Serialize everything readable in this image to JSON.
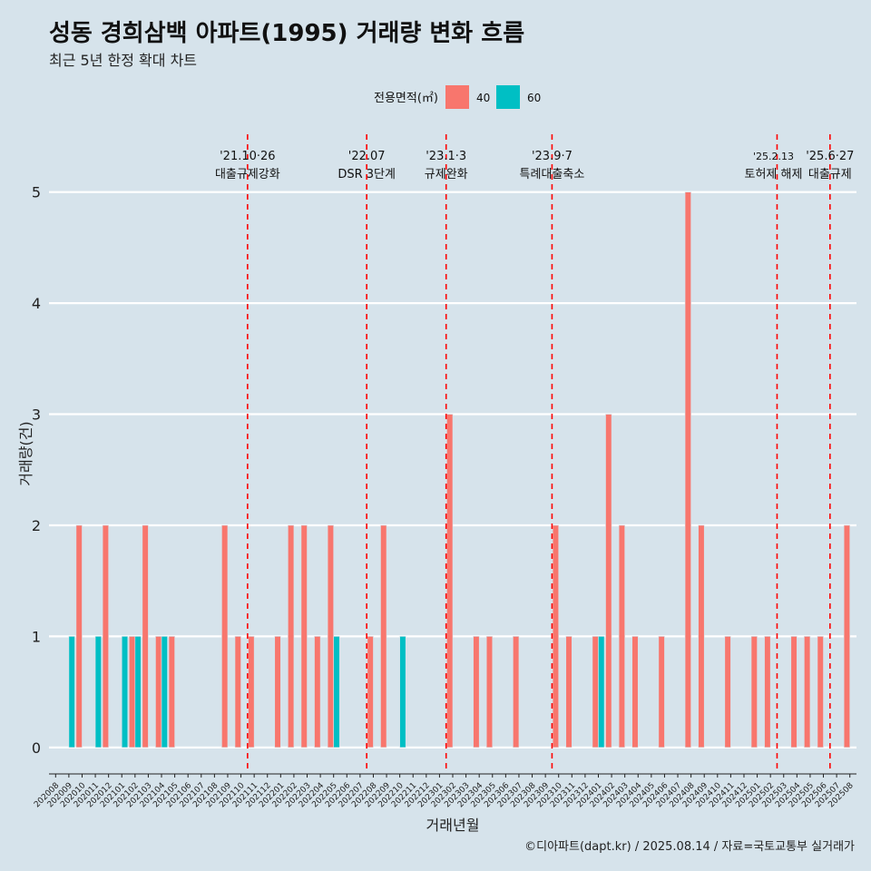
{
  "title": "성동 경희삼백 아파트(1995) 거래량 변화 흐름",
  "subtitle": "최근 5년 한정 확대 차트",
  "caption": "©디아파트(dapt.kr) / 2025.08.14 / 자료=국토교통부 실거래가",
  "colors": {
    "background": "#d6e3eb",
    "grid": "#ffffff",
    "s40": "#f8766d",
    "s60": "#00bfc4",
    "event_line": "#ff0000"
  },
  "chart_data": {
    "type": "bar",
    "position": "dodge",
    "xlabel": "거래년월",
    "ylabel": "거래량(건)",
    "ylim": [
      0,
      5
    ],
    "yticks": [
      0,
      1,
      2,
      3,
      4,
      5
    ],
    "legend": {
      "title": "전용면적(㎡)",
      "position": "top",
      "entries": [
        "40",
        "60"
      ]
    },
    "categories": [
      "202008",
      "202009",
      "202010",
      "202011",
      "202012",
      "202101",
      "202102",
      "202103",
      "202104",
      "202105",
      "202106",
      "202107",
      "202108",
      "202109",
      "202110",
      "202111",
      "202112",
      "202201",
      "202202",
      "202203",
      "202204",
      "202205",
      "202206",
      "202207",
      "202208",
      "202209",
      "202210",
      "202211",
      "202212",
      "202301",
      "202302",
      "202303",
      "202304",
      "202305",
      "202306",
      "202307",
      "202308",
      "202309",
      "202310",
      "202311",
      "202312",
      "202401",
      "202402",
      "202403",
      "202404",
      "202405",
      "202406",
      "202407",
      "202408",
      "202409",
      "202410",
      "202411",
      "202412",
      "202501",
      "202502",
      "202503",
      "202504",
      "202505",
      "202506",
      "202507",
      "202508"
    ],
    "series": [
      {
        "name": "40",
        "values": [
          0,
          0,
          2,
          0,
          2,
          0,
          1,
          2,
          1,
          1,
          0,
          0,
          0,
          2,
          1,
          1,
          0,
          1,
          2,
          2,
          1,
          2,
          0,
          0,
          1,
          2,
          0,
          0,
          0,
          0,
          3,
          0,
          1,
          1,
          0,
          1,
          0,
          0,
          2,
          1,
          0,
          1,
          3,
          2,
          1,
          0,
          1,
          0,
          5,
          2,
          0,
          1,
          0,
          1,
          1,
          0,
          1,
          1,
          1,
          0,
          2
        ]
      },
      {
        "name": "60",
        "values": [
          0,
          1,
          0,
          1,
          0,
          1,
          1,
          0,
          1,
          0,
          0,
          0,
          0,
          0,
          0,
          0,
          0,
          0,
          0,
          0,
          0,
          1,
          0,
          0,
          0,
          0,
          1,
          0,
          0,
          0,
          0,
          0,
          0,
          0,
          0,
          0,
          0,
          0,
          0,
          0,
          0,
          1,
          0,
          0,
          0,
          0,
          0,
          0,
          0,
          0,
          0,
          0,
          0,
          0,
          0,
          0,
          0,
          0,
          0,
          0,
          0
        ]
      }
    ],
    "events": [
      {
        "after": "202110",
        "label_top": "'21.10·26",
        "label_bottom": "대출규제강화"
      },
      {
        "after": "202207",
        "label_top": "'22.07",
        "label_bottom": "DSR 3단계"
      },
      {
        "after": "202301",
        "label_top": "'23.1·3",
        "label_bottom": "규제완화"
      },
      {
        "after": "202309",
        "label_top": "'23.9·7",
        "label_bottom": "특례대출축소"
      },
      {
        "after": "202502",
        "label_top": "'25.2.13",
        "label_bottom": "토허제 해제"
      },
      {
        "after": "202506",
        "label_top": "'25.6·27",
        "label_bottom": "대출규제"
      }
    ]
  }
}
